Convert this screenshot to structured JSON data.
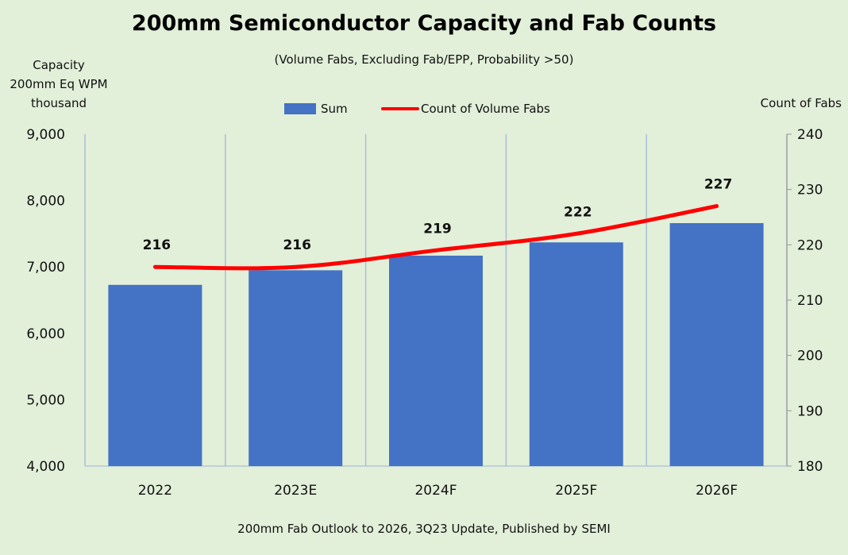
{
  "chart_data": {
    "type": "bar",
    "title": "200mm Semiconductor Capacity and Fab Counts",
    "subtitle": "(Volume Fabs, Excluding Fab/EPP, Probability >50)",
    "ylabel_left": [
      "Capacity",
      "200mm Eq WPM",
      "thousand"
    ],
    "ylabel_right": "Count of Fabs",
    "categories": [
      "2022",
      "2023E",
      "2024F",
      "2025F",
      "2026F"
    ],
    "series": [
      {
        "name": "Sum",
        "type": "bar",
        "axis": "left",
        "color": "#4472c4",
        "values": [
          6730,
          6950,
          7170,
          7370,
          7660
        ]
      },
      {
        "name": "Count of Volume Fabs",
        "type": "line",
        "axis": "right",
        "color": "#ff0000",
        "values": [
          216,
          216,
          219,
          222,
          227
        ]
      }
    ],
    "ylim_left": [
      4000,
      9000
    ],
    "yticks_left": [
      "4,000",
      "5,000",
      "6,000",
      "7,000",
      "8,000",
      "9,000"
    ],
    "ylim_right": [
      180,
      240
    ],
    "yticks_right": [
      "180",
      "190",
      "200",
      "210",
      "220",
      "230",
      "240"
    ],
    "data_labels": [
      "216",
      "216",
      "219",
      "222",
      "227"
    ],
    "legend_position": "top-center",
    "grid": "vertical category separators",
    "source": "200mm Fab Outlook to 2026, 3Q23 Update, Published by SEMI"
  }
}
